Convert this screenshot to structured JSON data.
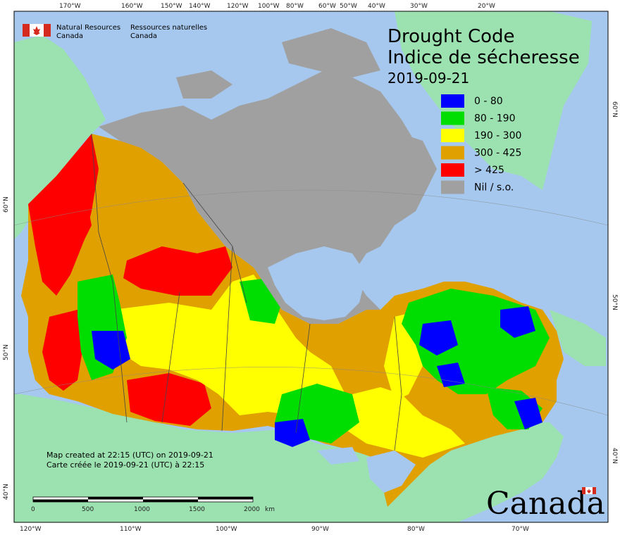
{
  "agency": {
    "name_en_line1": "Natural Resources",
    "name_en_line2": "Canada",
    "name_fr_line1": "Ressources naturelles",
    "name_fr_line2": "Canada"
  },
  "title": {
    "line1": "Drought Code",
    "line2": "Indice de sécheresse",
    "date": "2019-09-21"
  },
  "legend": [
    {
      "label": "0 - 80",
      "color": "#0000ff"
    },
    {
      "label": "80 - 190",
      "color": "#00dd00"
    },
    {
      "label": "190 - 300",
      "color": "#ffff00"
    },
    {
      "label": "300 - 425",
      "color": "#e0a000"
    },
    {
      "label": "> 425",
      "color": "#ff0000"
    },
    {
      "label": "Nil / s.o.",
      "color": "#a0a0a0"
    }
  ],
  "credit": {
    "line1": "Map created at 22:15 (UTC) on 2019-09-21",
    "line2": "Carte créée le 2019-09-21 (UTC) à 22:15"
  },
  "scale_bar": {
    "ticks": [
      "0",
      "500",
      "1000",
      "1500",
      "2000"
    ],
    "unit": "km"
  },
  "wordmark": "Canada",
  "graticule": {
    "top_longitudes": [
      "170°W",
      "160°W",
      "150°W",
      "140°W",
      "120°W",
      "100°W",
      "80°W",
      "60°W",
      "50°W",
      "40°W",
      "30°W",
      "20°W"
    ],
    "bottom_longitudes": [
      "120°W",
      "110°W",
      "100°W",
      "90°W",
      "80°W",
      "70°W"
    ],
    "left_latitudes": [
      "60°N",
      "50°N",
      "40°N"
    ],
    "right_latitudes": [
      "60°N",
      "50°N",
      "40°N"
    ]
  },
  "colors": {
    "ocean": "#a6c8ee",
    "foreign_land": "#9ce2b0",
    "no_data": "#a0a0a0",
    "flag_red": "#d52b1e"
  }
}
